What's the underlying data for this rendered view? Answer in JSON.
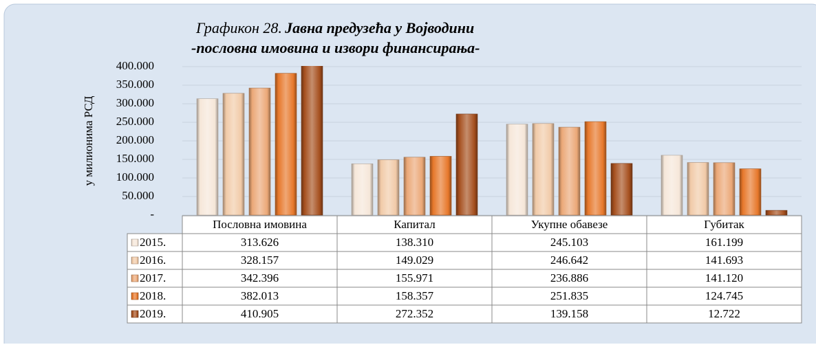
{
  "chart_data": {
    "type": "bar",
    "title_label": "Графикон 28.",
    "title": "Јавна предузећа у Војводини",
    "subtitle": "-пословна имовина и извори финансирања-",
    "ylabel": "у милионима РСД",
    "categories": [
      "Пословна имовина",
      "Капитал",
      "Укупне обавезе",
      "Губитак"
    ],
    "series": [
      {
        "name": "2015.",
        "color": "#f6e7d9",
        "values": [
          313626,
          138310,
          245103,
          161199
        ],
        "value_labels": [
          "313.626",
          "138.310",
          "245.103",
          "161.199"
        ]
      },
      {
        "name": "2016.",
        "color": "#f1caa8",
        "values": [
          328157,
          149029,
          246642,
          141693
        ],
        "value_labels": [
          "328.157",
          "149.029",
          "246.642",
          "141.693"
        ]
      },
      {
        "name": "2017.",
        "color": "#eba877",
        "values": [
          342396,
          155971,
          236886,
          141120
        ],
        "value_labels": [
          "342.396",
          "155.971",
          "236.886",
          "141.120"
        ]
      },
      {
        "name": "2018.",
        "color": "#e7782b",
        "values": [
          382013,
          158357,
          251835,
          124745
        ],
        "value_labels": [
          "382.013",
          "158.357",
          "251.835",
          "124.745"
        ]
      },
      {
        "name": "2019.",
        "color": "#a6501f",
        "values": [
          410905,
          272352,
          139158,
          12722
        ],
        "value_labels": [
          "410.905",
          "272.352",
          "139.158",
          "12.722"
        ]
      }
    ],
    "ylim": [
      0,
      400000
    ],
    "yticks": [
      {
        "value": 0,
        "label": "-"
      },
      {
        "value": 50000,
        "label": "50.000"
      },
      {
        "value": 100000,
        "label": "100.000"
      },
      {
        "value": 150000,
        "label": "150.000"
      },
      {
        "value": 200000,
        "label": "200.000"
      },
      {
        "value": 250000,
        "label": "250.000"
      },
      {
        "value": 300000,
        "label": "300.000"
      },
      {
        "value": 350000,
        "label": "350.000"
      },
      {
        "value": 400000,
        "label": "400.000"
      }
    ],
    "grid": true
  }
}
